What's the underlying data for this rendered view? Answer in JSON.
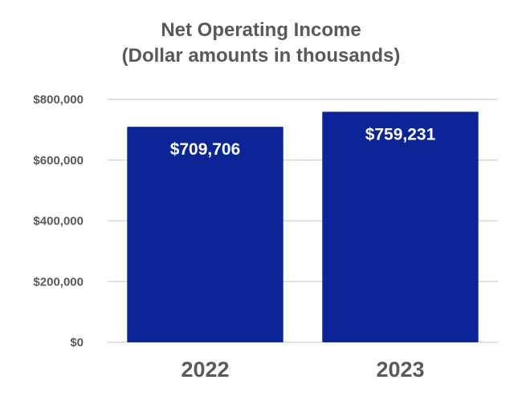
{
  "chart_data": {
    "type": "bar",
    "title": "Net Operating Income",
    "subtitle": "(Dollar amounts in thousands)",
    "categories": [
      "2022",
      "2023"
    ],
    "values": [
      709706,
      759231
    ],
    "data_labels": [
      "$709,706",
      "$759,231"
    ],
    "ylim": [
      0,
      800000
    ],
    "yticks": [
      0,
      200000,
      400000,
      600000,
      800000
    ],
    "ytick_labels": [
      "$0",
      "$200,000",
      "$400,000",
      "$600,000",
      "$800,000"
    ],
    "grid": true,
    "legend": "none",
    "bar_color": "#0c2496",
    "grid_color": "#d9d9d9",
    "text_color": "#595959"
  }
}
